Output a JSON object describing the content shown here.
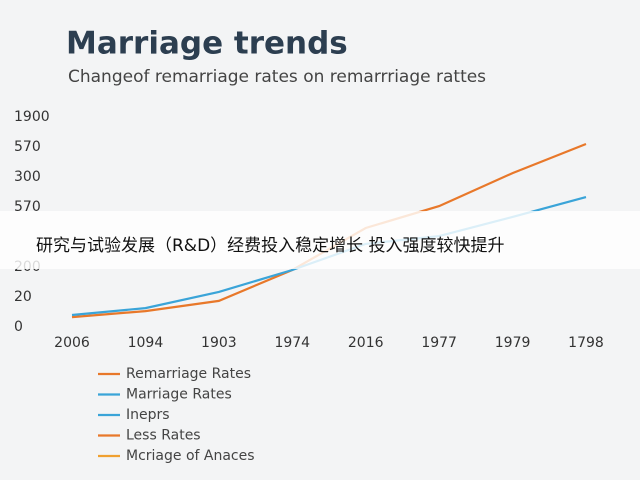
{
  "chart_data": {
    "type": "line",
    "title": "Marriage trends",
    "subtitle": "Changeof remarriage rates on remarrriage rattes",
    "categories": [
      "2006",
      "1094",
      "1903",
      "1974",
      "2016",
      "1977",
      "1979",
      "1798"
    ],
    "series": [
      {
        "color": "#e8782a",
        "values": [
          0.33,
          0.53,
          0.87,
          1.9,
          3.3,
          4.03,
          5.13,
          6.1
        ]
      },
      {
        "color": "#3aa4d8",
        "values": [
          0.4,
          0.63,
          1.17,
          1.9,
          2.77,
          3.03,
          3.67,
          4.33
        ]
      }
    ],
    "ylim": [
      0,
      7
    ],
    "yticks": [
      0,
      {
        "value": 1,
        "label": "20"
      },
      {
        "value": 2,
        "label": "200"
      },
      {
        "value": 4,
        "label": "570"
      },
      {
        "value": 5,
        "label": "300"
      },
      {
        "value": 6,
        "label": "570"
      },
      {
        "value": 7,
        "label": "1900"
      }
    ],
    "legend": [
      {
        "label": "Remarriage Rates",
        "color": "#e8782a"
      },
      {
        "label": "Marriage Rates",
        "color": "#3aa4d8"
      },
      {
        "label": "Ineprs",
        "color": "#3aa4d8"
      },
      {
        "label": "Less Rates",
        "color": "#e8782a"
      },
      {
        "label": "Mcriage of Anaces",
        "color": "#f0a030"
      }
    ]
  },
  "banner": {
    "text": "研究与试验发展（R&D）经费投入稳定增长 投入强度较快提升"
  }
}
